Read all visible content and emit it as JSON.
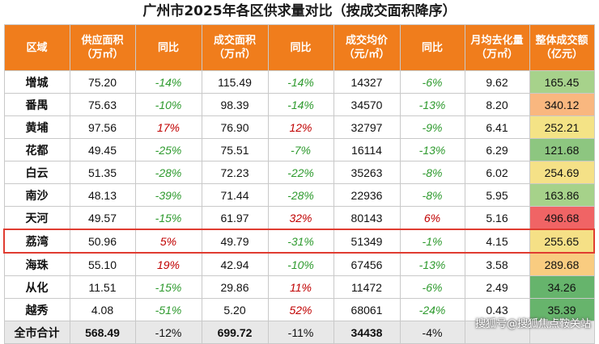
{
  "title": "广州市2025年各区供求量对比（按成交面积降序）",
  "headers": [
    "区域",
    "供应面积\n（万㎡）",
    "同比",
    "成交面积\n（万㎡）",
    "同比",
    "成交均价\n（元/㎡）",
    "同比",
    "月均去化量\n（万㎡）",
    "整体成交额\n（亿元）"
  ],
  "colors": {
    "header_bg": "#f07d1c",
    "up": "#c00000",
    "down": "#2e9a2e",
    "highlight_border": "#e03c31",
    "total_bg": "#e8e8e8"
  },
  "rows": [
    {
      "name": "增城",
      "supply": "75.20",
      "supply_yoy": "-14%",
      "deal": "115.49",
      "deal_yoy": "-14%",
      "price": "14327",
      "price_yoy": "-6%",
      "monthly": "9.62",
      "amount": "165.45",
      "amount_color": "#a7d28b"
    },
    {
      "name": "番禺",
      "supply": "75.63",
      "supply_yoy": "-10%",
      "deal": "98.39",
      "deal_yoy": "-14%",
      "price": "34570",
      "price_yoy": "-13%",
      "monthly": "8.20",
      "amount": "340.12",
      "amount_color": "#f9b77f"
    },
    {
      "name": "黄埔",
      "supply": "97.56",
      "supply_yoy": "17%",
      "deal": "76.90",
      "deal_yoy": "12%",
      "price": "32797",
      "price_yoy": "-9%",
      "monthly": "6.41",
      "amount": "252.21",
      "amount_color": "#f4e386"
    },
    {
      "name": "花都",
      "supply": "49.45",
      "supply_yoy": "-25%",
      "deal": "75.51",
      "deal_yoy": "-7%",
      "price": "16114",
      "price_yoy": "-13%",
      "monthly": "6.29",
      "amount": "121.68",
      "amount_color": "#8dc680"
    },
    {
      "name": "白云",
      "supply": "51.35",
      "supply_yoy": "-28%",
      "deal": "72.23",
      "deal_yoy": "-22%",
      "price": "35263",
      "price_yoy": "-8%",
      "monthly": "6.02",
      "amount": "254.69",
      "amount_color": "#f5e187"
    },
    {
      "name": "南沙",
      "supply": "48.13",
      "supply_yoy": "-39%",
      "deal": "71.44",
      "deal_yoy": "-28%",
      "price": "22936",
      "price_yoy": "-8%",
      "monthly": "5.95",
      "amount": "163.86",
      "amount_color": "#a6d28a"
    },
    {
      "name": "天河",
      "supply": "49.57",
      "supply_yoy": "-15%",
      "deal": "61.97",
      "deal_yoy": "32%",
      "price": "80143",
      "price_yoy": "6%",
      "monthly": "5.16",
      "amount": "496.68",
      "amount_color": "#f06465"
    },
    {
      "name": "荔湾",
      "supply": "50.96",
      "supply_yoy": "5%",
      "deal": "49.79",
      "deal_yoy": "-31%",
      "price": "51349",
      "price_yoy": "-1%",
      "monthly": "4.15",
      "amount": "255.65",
      "amount_color": "#f5e086",
      "highlight": true
    },
    {
      "name": "海珠",
      "supply": "55.10",
      "supply_yoy": "19%",
      "deal": "42.94",
      "deal_yoy": "-10%",
      "price": "67456",
      "price_yoy": "-13%",
      "monthly": "3.58",
      "amount": "289.68",
      "amount_color": "#f9cc80"
    },
    {
      "name": "从化",
      "supply": "11.51",
      "supply_yoy": "-15%",
      "deal": "29.86",
      "deal_yoy": "11%",
      "price": "11472",
      "price_yoy": "-6%",
      "monthly": "2.49",
      "amount": "34.26",
      "amount_color": "#66b46c"
    },
    {
      "name": "越秀",
      "supply": "4.08",
      "supply_yoy": "-51%",
      "deal": "5.20",
      "deal_yoy": "52%",
      "price": "68061",
      "price_yoy": "-24%",
      "monthly": "0.43",
      "amount": "35.39",
      "amount_color": "#67b46c"
    }
  ],
  "total": {
    "name": "全市合计",
    "supply": "568.49",
    "supply_yoy": "-12%",
    "deal": "699.72",
    "deal_yoy": "-11%",
    "price": "34438",
    "price_yoy": "-4%"
  },
  "watermark": "搜狐号@搜狐焦点鞍关站"
}
